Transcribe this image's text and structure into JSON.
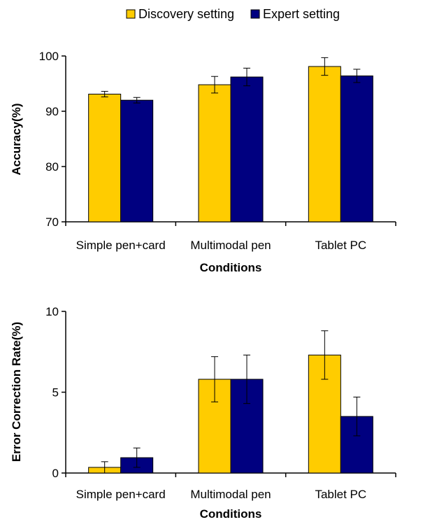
{
  "colors": {
    "discovery": "#ffcc00",
    "expert": "#000080",
    "axis": "#000000"
  },
  "legend": {
    "placement": "top-center",
    "items": [
      {
        "label": "Discovery setting",
        "color": "#ffcc00"
      },
      {
        "label": "Expert setting",
        "color": "#000080"
      }
    ]
  },
  "chart_data": [
    {
      "type": "bar",
      "categories": [
        "Simple pen+card",
        "Multimodal pen",
        "Tablet PC"
      ],
      "series": [
        {
          "name": "Discovery setting",
          "values": [
            93.1,
            94.8,
            98.1
          ],
          "errors": [
            0.5,
            1.5,
            1.6
          ]
        },
        {
          "name": "Expert setting",
          "values": [
            92.0,
            96.2,
            96.4
          ],
          "errors": [
            0.5,
            1.6,
            1.2
          ]
        }
      ],
      "ylabel": "Accuracy(%)",
      "xlabel": "Conditions",
      "ylim": [
        70,
        100
      ],
      "yticks": [
        "70",
        "80",
        "90",
        "100"
      ],
      "grid": false
    },
    {
      "type": "bar",
      "categories": [
        "Simple pen+card",
        "Multimodal pen",
        "Tablet PC"
      ],
      "series": [
        {
          "name": "Discovery setting",
          "values": [
            0.35,
            5.8,
            7.3
          ],
          "errors": [
            0.35,
            1.4,
            1.5
          ]
        },
        {
          "name": "Expert setting",
          "values": [
            0.95,
            5.8,
            3.5
          ],
          "errors": [
            0.6,
            1.5,
            1.2
          ]
        }
      ],
      "ylabel": "Error Correction Rate(%)",
      "xlabel": "Conditions",
      "ylim": [
        0,
        10
      ],
      "yticks": [
        "0",
        "5",
        "10"
      ],
      "grid": false
    }
  ]
}
